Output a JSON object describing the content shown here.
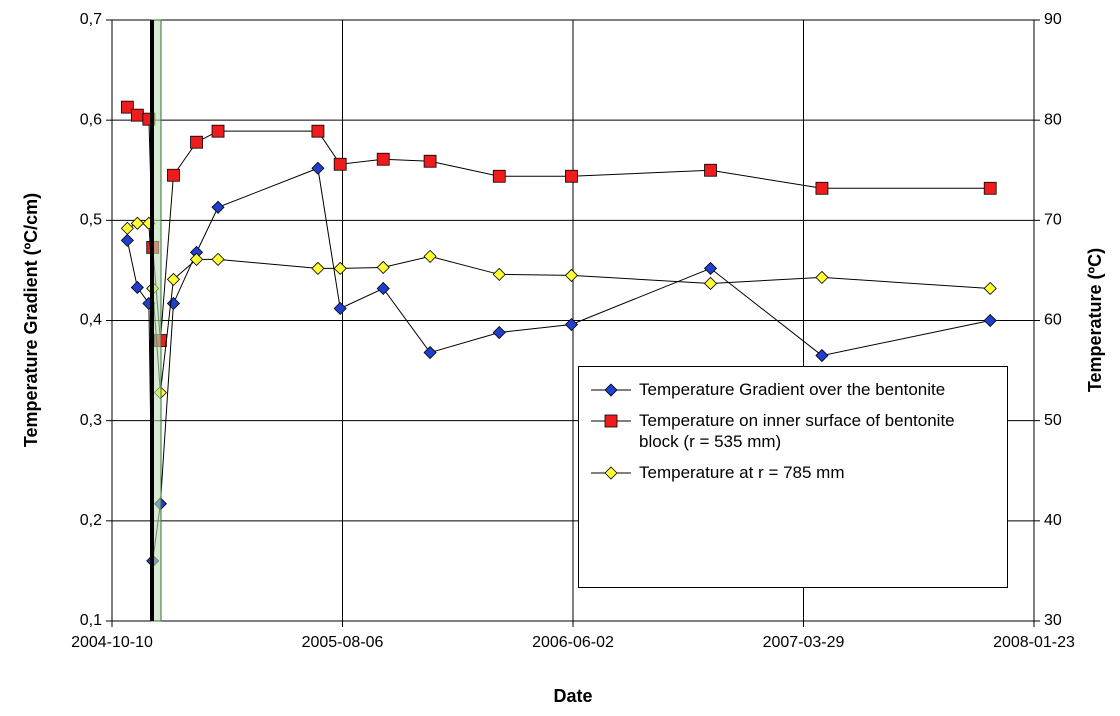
{
  "chart_data": {
    "type": "line",
    "x_label": "Date",
    "y_label": "Temperature Gradient (ºC/cm)",
    "y2_label": "Temperature (ºC)",
    "x": [
      "2004-10-30",
      "2004-11-12",
      "2004-11-27",
      "2004-12-02",
      "2004-12-12",
      "2004-12-29",
      "2005-01-28",
      "2005-02-25",
      "2005-07-05",
      "2005-08-03",
      "2005-09-28",
      "2005-11-28",
      "2006-02-26",
      "2006-05-31",
      "2006-11-28",
      "2007-04-22",
      "2007-11-27"
    ],
    "xlim": [
      "2004-10-10",
      "2008-01-23"
    ],
    "xticks": [
      "2004-10-10",
      "2005-08-06",
      "2006-06-02",
      "2007-03-29",
      "2008-01-23"
    ],
    "ylim": [
      0.1,
      0.7
    ],
    "yticks": [
      {
        "value": 0.1,
        "label": "0,1"
      },
      {
        "value": 0.2,
        "label": "0,2"
      },
      {
        "value": 0.3,
        "label": "0,3"
      },
      {
        "value": 0.4,
        "label": "0,4"
      },
      {
        "value": 0.5,
        "label": "0,5"
      },
      {
        "value": 0.6,
        "label": "0,6"
      },
      {
        "value": 0.7,
        "label": "0,7"
      }
    ],
    "y2lim": [
      30,
      90
    ],
    "y2ticks": [
      30,
      40,
      50,
      60,
      70,
      80,
      90
    ],
    "grid": true,
    "line_color": "#000000",
    "series": [
      {
        "name": "Temperature Gradient over the bentonite",
        "color": "#1f3fcc",
        "marker": "diamond",
        "values": [
          0.48,
          0.433,
          0.417,
          0.16,
          0.217,
          0.417,
          0.468,
          0.513,
          0.552,
          0.412,
          0.432,
          0.368,
          0.388,
          0.396,
          0.452,
          0.365,
          0.4
        ]
      },
      {
        "name": "Temperature on inner surface of bentonite block (r = 535 mm)",
        "color": "#ee1c1c",
        "marker": "square",
        "axis": "y2",
        "values": [
          81.3,
          80.5,
          80.1,
          67.3,
          58.0,
          74.5,
          77.8,
          78.9,
          78.9,
          75.6,
          76.1,
          75.9,
          74.4,
          74.4,
          75.0,
          73.2,
          73.2
        ]
      },
      {
        "name": "Temperature at r = 785 mm",
        "color": "#ffff33",
        "marker": "diamond",
        "axis": "y2",
        "values": [
          69.2,
          69.7,
          69.7,
          63.2,
          52.8,
          64.1,
          66.1,
          66.1,
          65.2,
          65.2,
          65.3,
          66.4,
          64.6,
          64.5,
          63.7,
          64.3,
          63.2
        ]
      }
    ]
  }
}
